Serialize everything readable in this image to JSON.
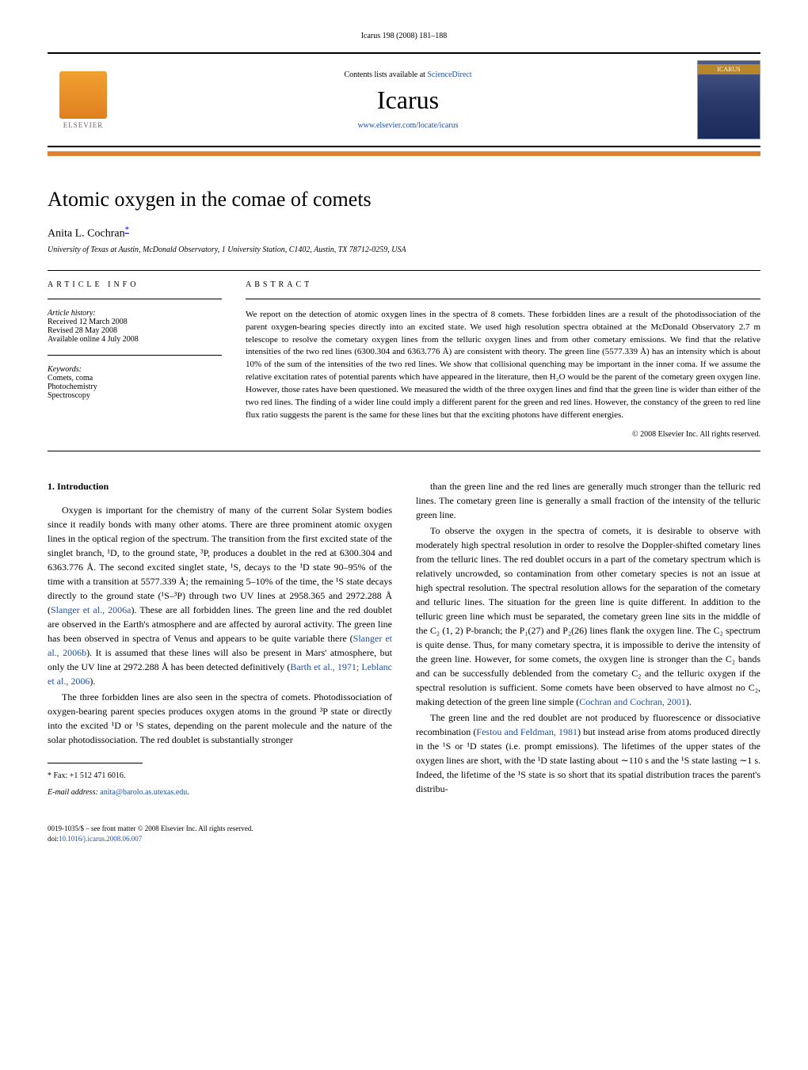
{
  "journal_ref": "Icarus 198 (2008) 181–188",
  "header": {
    "contents_prefix": "Contents lists available at ",
    "contents_link": "ScienceDirect",
    "journal_name": "Icarus",
    "journal_url": "www.elsevier.com/locate/icarus",
    "elsevier_label": "ELSEVIER",
    "cover_label": "ICARUS"
  },
  "title": "Atomic oxygen in the comae of comets",
  "author": "Anita L. Cochran",
  "author_marker": "*",
  "affiliation": "University of Texas at Austin, McDonald Observatory, 1 University Station, C1402, Austin, TX 78712-0259, USA",
  "article_info": {
    "heading": "ARTICLE INFO",
    "history_label": "Article history:",
    "received": "Received 12 March 2008",
    "revised": "Revised 28 May 2008",
    "available": "Available online 4 July 2008",
    "keywords_label": "Keywords:",
    "keywords": [
      "Comets, coma",
      "Photochemistry",
      "Spectroscopy"
    ]
  },
  "abstract": {
    "heading": "ABSTRACT",
    "text": "We report on the detection of atomic oxygen lines in the spectra of 8 comets. These forbidden lines are a result of the photodissociation of the parent oxygen-bearing species directly into an excited state. We used high resolution spectra obtained at the McDonald Observatory 2.7 m telescope to resolve the cometary oxygen lines from the telluric oxygen lines and from other cometary emissions. We find that the relative intensities of the two red lines (6300.304 and 6363.776 Å) are consistent with theory. The green line (5577.339 Å) has an intensity which is about 10% of the sum of the intensities of the two red lines. We show that collisional quenching may be important in the inner coma. If we assume the relative excitation rates of potential parents which have appeared in the literature, then H₂O would be the parent of the cometary green oxygen line. However, those rates have been questioned. We measured the width of the three oxygen lines and find that the green line is wider than either of the two red lines. The finding of a wider line could imply a different parent for the green and red lines. However, the constancy of the green to red line flux ratio suggests the parent is the same for these lines but that the exciting photons have different energies.",
    "copyright": "© 2008 Elsevier Inc. All rights reserved."
  },
  "section1": {
    "heading": "1. Introduction",
    "p1_a": "Oxygen is important for the chemistry of many of the current Solar System bodies since it readily bonds with many other atoms. There are three prominent atomic oxygen lines in the optical region of the spectrum. The transition from the first excited state of the singlet branch, ¹D, to the ground state, ³P, produces a doublet in the red at 6300.304 and 6363.776 Å. The second excited singlet state, ¹S, decays to the ¹D state 90–95% of the time with a transition at 5577.339 Å; the remaining 5–10% of the time, the ¹S state decays directly to the ground state (¹S–³P) through two UV lines at 2958.365 and 2972.288 Å (",
    "p1_link1": "Slanger et al., 2006a",
    "p1_b": "). These are all forbidden lines. The green line and the red doublet are observed in the Earth's atmosphere and are affected by auroral activity. The green line has been observed in spectra of Venus and appears to be quite variable there (",
    "p1_link2": "Slanger et al., 2006b",
    "p1_c": "). It is assumed that these lines will also be present in Mars' atmosphere, but only the UV line at 2972.288 Å has been detected definitively (",
    "p1_link3": "Barth et al., 1971; Leblanc et al., 2006",
    "p1_d": ").",
    "p2": "The three forbidden lines are also seen in the spectra of comets. Photodissociation of oxygen-bearing parent species produces oxygen atoms in the ground ³P state or directly into the excited ¹D or ¹S states, depending on the parent molecule and the nature of the solar photodissociation. The red doublet is substantially stronger",
    "p3": "than the green line and the red lines are generally much stronger than the telluric red lines. The cometary green line is generally a small fraction of the intensity of the telluric green line.",
    "p4_a": "To observe the oxygen in the spectra of comets, it is desirable to observe with moderately high spectral resolution in order to resolve the Doppler-shifted cometary lines from the telluric lines. The red doublet occurs in a part of the cometary spectrum which is relatively uncrowded, so contamination from other cometary species is not an issue at high spectral resolution. The spectral resolution allows for the separation of the cometary and telluric lines. The situation for the green line is quite different. In addition to the telluric green line which must be separated, the cometary green line sits in the middle of the C₂ (1, 2) P-branch; the P₁(27) and P₂(26) lines flank the oxygen line. The C₂ spectrum is quite dense. Thus, for many cometary spectra, it is impossible to derive the intensity of the green line. However, for some comets, the oxygen line is stronger than the C₂ bands and can be successfully deblended from the cometary C₂ and the telluric oxygen if the spectral resolution is sufficient. Some comets have been observed to have almost no C₂, making detection of the green line simple (",
    "p4_link1": "Cochran and Cochran, 2001",
    "p4_b": ").",
    "p5_a": "The green line and the red doublet are not produced by fluorescence or dissociative recombination (",
    "p5_link1": "Festou and Feldman, 1981",
    "p5_b": ") but instead arise from atoms produced directly in the ¹S or ¹D states (i.e. prompt emissions). The lifetimes of the upper states of the oxygen lines are short, with the ¹D state lasting about ∼110 s and the ¹S state lasting ∼1 s. Indeed, the lifetime of the ¹S state is so short that its spatial distribution traces the parent's distribu-"
  },
  "footnotes": {
    "fax_label": "* Fax: ",
    "fax": "+1 512 471 6016.",
    "email_label": "E-mail address: ",
    "email": "anita@barolo.as.utexas.edu"
  },
  "footer": {
    "line1": "0019-1035/$ – see front matter © 2008 Elsevier Inc. All rights reserved.",
    "doi_label": "doi:",
    "doi": "10.1016/j.icarus.2008.06.007"
  },
  "colors": {
    "link": "#2050a0",
    "orange_bar": "#e08030",
    "elsevier_orange": "#e08020"
  },
  "typography": {
    "title_size": 26,
    "journal_name_size": 32,
    "body_size": 12,
    "abstract_size": 11,
    "meta_size": 10
  }
}
